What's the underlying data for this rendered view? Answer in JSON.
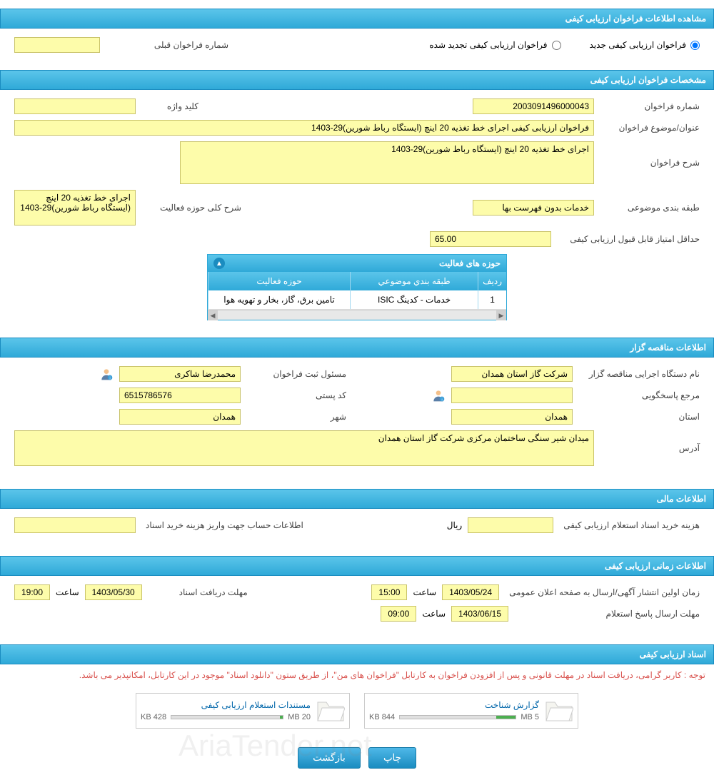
{
  "colors": {
    "header_gradient_top": "#5bc5ea",
    "header_gradient_bottom": "#2fa9d8",
    "header_border": "#1a8cc0",
    "field_bg": "#fdfcaa",
    "field_border": "#c9c36a",
    "note_color": "#d9534f",
    "link_color": "#0066aa",
    "meter_fill": "#4caf50"
  },
  "sections": {
    "view_info": "مشاهده اطلاعات فراخوان ارزیابی کیفی",
    "spec": "مشخصات فراخوان ارزیابی کیفی",
    "tenderer": "اطلاعات مناقصه گزار",
    "financial": "اطلاعات مالی",
    "timing": "اطلاعات زمانی ارزیابی کیفی",
    "docs": "اسناد ارزیابی کیفی"
  },
  "radio": {
    "new_call": "فراخوان ارزیابی کیفی جدید",
    "renewed_call": "فراخوان ارزیابی کیفی تجدید شده",
    "prev_number_label": "شماره فراخوان قبلی",
    "prev_number_value": ""
  },
  "spec": {
    "call_number_label": "شماره فراخوان",
    "call_number": "2003091496000043",
    "keyword_label": "کلید واژه",
    "keyword": "",
    "subject_label": "عنوان/موضوع فراخوان",
    "subject": "فراخوان ارزیابی کیفی اجرای خط تغذیه 20 اینچ (ایستگاه رباط شورین)29-1403",
    "desc_label": "شرح فراخوان",
    "desc": "اجرای خط تغذیه 20 اینچ (ایستگاه رباط شورین)29-1403",
    "category_label": "طبقه بندی موضوعی",
    "category": "خدمات بدون فهرست بها",
    "activity_summary_label": "شرح کلی حوزه فعالیت",
    "activity_summary": "اجرای خط تغذیه 20 اینچ (ایستگاه رباط شورین)29-1403",
    "min_score_label": "حداقل امتیاز قابل قبول ارزیابی کیفی",
    "min_score": "65.00"
  },
  "activity_table": {
    "title": "حوزه های فعالیت",
    "headers": {
      "row": "ردیف",
      "category": "طبقه بندي موضوعي",
      "activity": "حوزه فعالیت"
    },
    "rows": [
      {
        "idx": "1",
        "category": "خدمات - کدینگ ISIC",
        "activity": "تامین برق، گاز، بخار و تهویه هوا"
      }
    ]
  },
  "tenderer": {
    "org_label": "نام دستگاه اجرایی مناقصه گزار",
    "org": "شرکت گاز استان همدان",
    "registrar_label": "مسئول ثبت فراخوان",
    "registrar": "محمدرضا شاکری",
    "responder_label": "مرجع پاسخگویی",
    "responder": "",
    "postal_label": "کد پستی",
    "postal": "6515786576",
    "province_label": "استان",
    "province": "همدان",
    "city_label": "شهر",
    "city": "همدان",
    "address_label": "آدرس",
    "address": "میدان شیر سنگی ساختمان مرکزی شرکت گاز استان همدان"
  },
  "financial": {
    "doc_fee_label": "هزینه خرید اسناد استعلام ارزیابی کیفی",
    "doc_fee": "",
    "currency": "ریال",
    "account_label": "اطلاعات حساب جهت واریز هزینه خرید اسناد",
    "account": ""
  },
  "timing": {
    "publish_label": "زمان اولین انتشار آگهی/ارسال به صفحه اعلان عمومی",
    "publish_date": "1403/05/24",
    "publish_time": "15:00",
    "receive_label": "مهلت دریافت اسناد",
    "receive_date": "1403/05/30",
    "receive_time": "19:00",
    "reply_label": "مهلت ارسال پاسخ استعلام",
    "reply_date": "1403/06/15",
    "reply_time": "09:00",
    "time_word": "ساعت"
  },
  "docs": {
    "note": "توجه : کاربر گرامی، دریافت اسناد در مهلت قانونی و پس از افزودن فراخوان به کارتابل \"فراخوان های من\"، از طریق ستون \"دانلود اسناد\" موجود در این کارتابل، امکانپذیر می باشد.",
    "items": [
      {
        "title": "گزارش شناخت",
        "size": "844 KB",
        "quota": "5 MB",
        "fill_pct": 17
      },
      {
        "title": "مستندات استعلام ارزیابی کیفی",
        "size": "428 KB",
        "quota": "20 MB",
        "fill_pct": 3
      }
    ]
  },
  "buttons": {
    "print": "چاپ",
    "back": "بازگشت"
  },
  "watermark": "AriaTender.net"
}
